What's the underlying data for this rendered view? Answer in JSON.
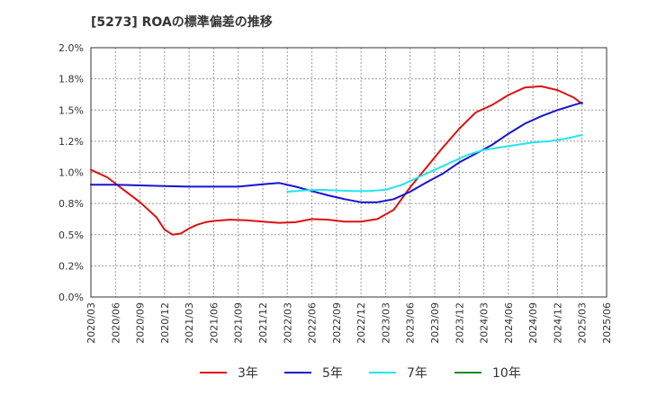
{
  "chart_data": {
    "type": "line",
    "title": "[5273]  ROAの標準偏差の推移",
    "xlabel": "",
    "ylabel": "",
    "ylim": [
      0,
      2.0
    ],
    "y_ticks": [
      "0.0%",
      "0.2%",
      "0.5%",
      "0.8%",
      "1.0%",
      "1.2%",
      "1.5%",
      "1.8%",
      "2.0%"
    ],
    "x_ticks": [
      "2020/03",
      "2020/06",
      "2020/09",
      "2020/12",
      "2021/03",
      "2021/06",
      "2021/09",
      "2021/12",
      "2022/03",
      "2022/06",
      "2022/09",
      "2022/12",
      "2023/03",
      "2023/06",
      "2023/09",
      "2023/12",
      "2024/03",
      "2024/06",
      "2024/09",
      "2024/12",
      "2025/03",
      "2025/06"
    ],
    "grid": true,
    "legend_position": "bottom",
    "series": [
      {
        "name": "3年",
        "color": "#dd1111",
        "x": [
          "2020/03",
          "2020/05",
          "2020/07",
          "2020/09",
          "2020/11",
          "2020/12",
          "2021/01",
          "2021/02",
          "2021/03",
          "2021/04",
          "2021/05",
          "2021/06",
          "2021/08",
          "2021/10",
          "2021/12",
          "2022/02",
          "2022/04",
          "2022/06",
          "2022/08",
          "2022/10",
          "2022/12",
          "2023/02",
          "2023/04",
          "2023/06",
          "2023/08",
          "2023/10",
          "2023/12",
          "2024/02",
          "2024/04",
          "2024/06",
          "2024/08",
          "2024/10",
          "2024/12",
          "2025/02",
          "2025/03"
        ],
        "values": [
          1.02,
          0.96,
          0.86,
          0.76,
          0.64,
          0.54,
          0.5,
          0.51,
          0.55,
          0.58,
          0.6,
          0.61,
          0.62,
          0.615,
          0.605,
          0.595,
          0.6,
          0.625,
          0.62,
          0.605,
          0.605,
          0.625,
          0.7,
          0.88,
          1.04,
          1.2,
          1.35,
          1.48,
          1.54,
          1.62,
          1.68,
          1.69,
          1.66,
          1.6,
          1.55
        ]
      },
      {
        "name": "5年",
        "color": "#1515cc",
        "x": [
          "2020/03",
          "2020/06",
          "2020/09",
          "2020/12",
          "2021/03",
          "2021/06",
          "2021/09",
          "2021/12",
          "2022/02",
          "2022/04",
          "2022/06",
          "2022/08",
          "2022/10",
          "2022/12",
          "2023/02",
          "2023/04",
          "2023/06",
          "2023/08",
          "2023/10",
          "2023/12",
          "2024/02",
          "2024/04",
          "2024/06",
          "2024/08",
          "2024/10",
          "2024/12",
          "2025/03"
        ],
        "values": [
          0.9,
          0.9,
          0.895,
          0.89,
          0.885,
          0.885,
          0.885,
          0.905,
          0.915,
          0.885,
          0.85,
          0.815,
          0.785,
          0.76,
          0.76,
          0.785,
          0.845,
          0.92,
          0.99,
          1.08,
          1.15,
          1.22,
          1.31,
          1.39,
          1.45,
          1.5,
          1.56
        ]
      },
      {
        "name": "7年",
        "color": "#22e5ee",
        "x": [
          "2022/03",
          "2022/05",
          "2022/07",
          "2022/09",
          "2022/11",
          "2023/01",
          "2023/03",
          "2023/05",
          "2023/07",
          "2023/09",
          "2023/11",
          "2024/01",
          "2024/03",
          "2024/05",
          "2024/07",
          "2024/09",
          "2024/11",
          "2025/01",
          "2025/03"
        ],
        "values": [
          0.845,
          0.855,
          0.86,
          0.855,
          0.85,
          0.85,
          0.86,
          0.9,
          0.96,
          1.02,
          1.08,
          1.14,
          1.18,
          1.2,
          1.22,
          1.24,
          1.25,
          1.27,
          1.3
        ]
      },
      {
        "name": "10年",
        "color": "#228822",
        "x": [],
        "values": []
      }
    ]
  }
}
